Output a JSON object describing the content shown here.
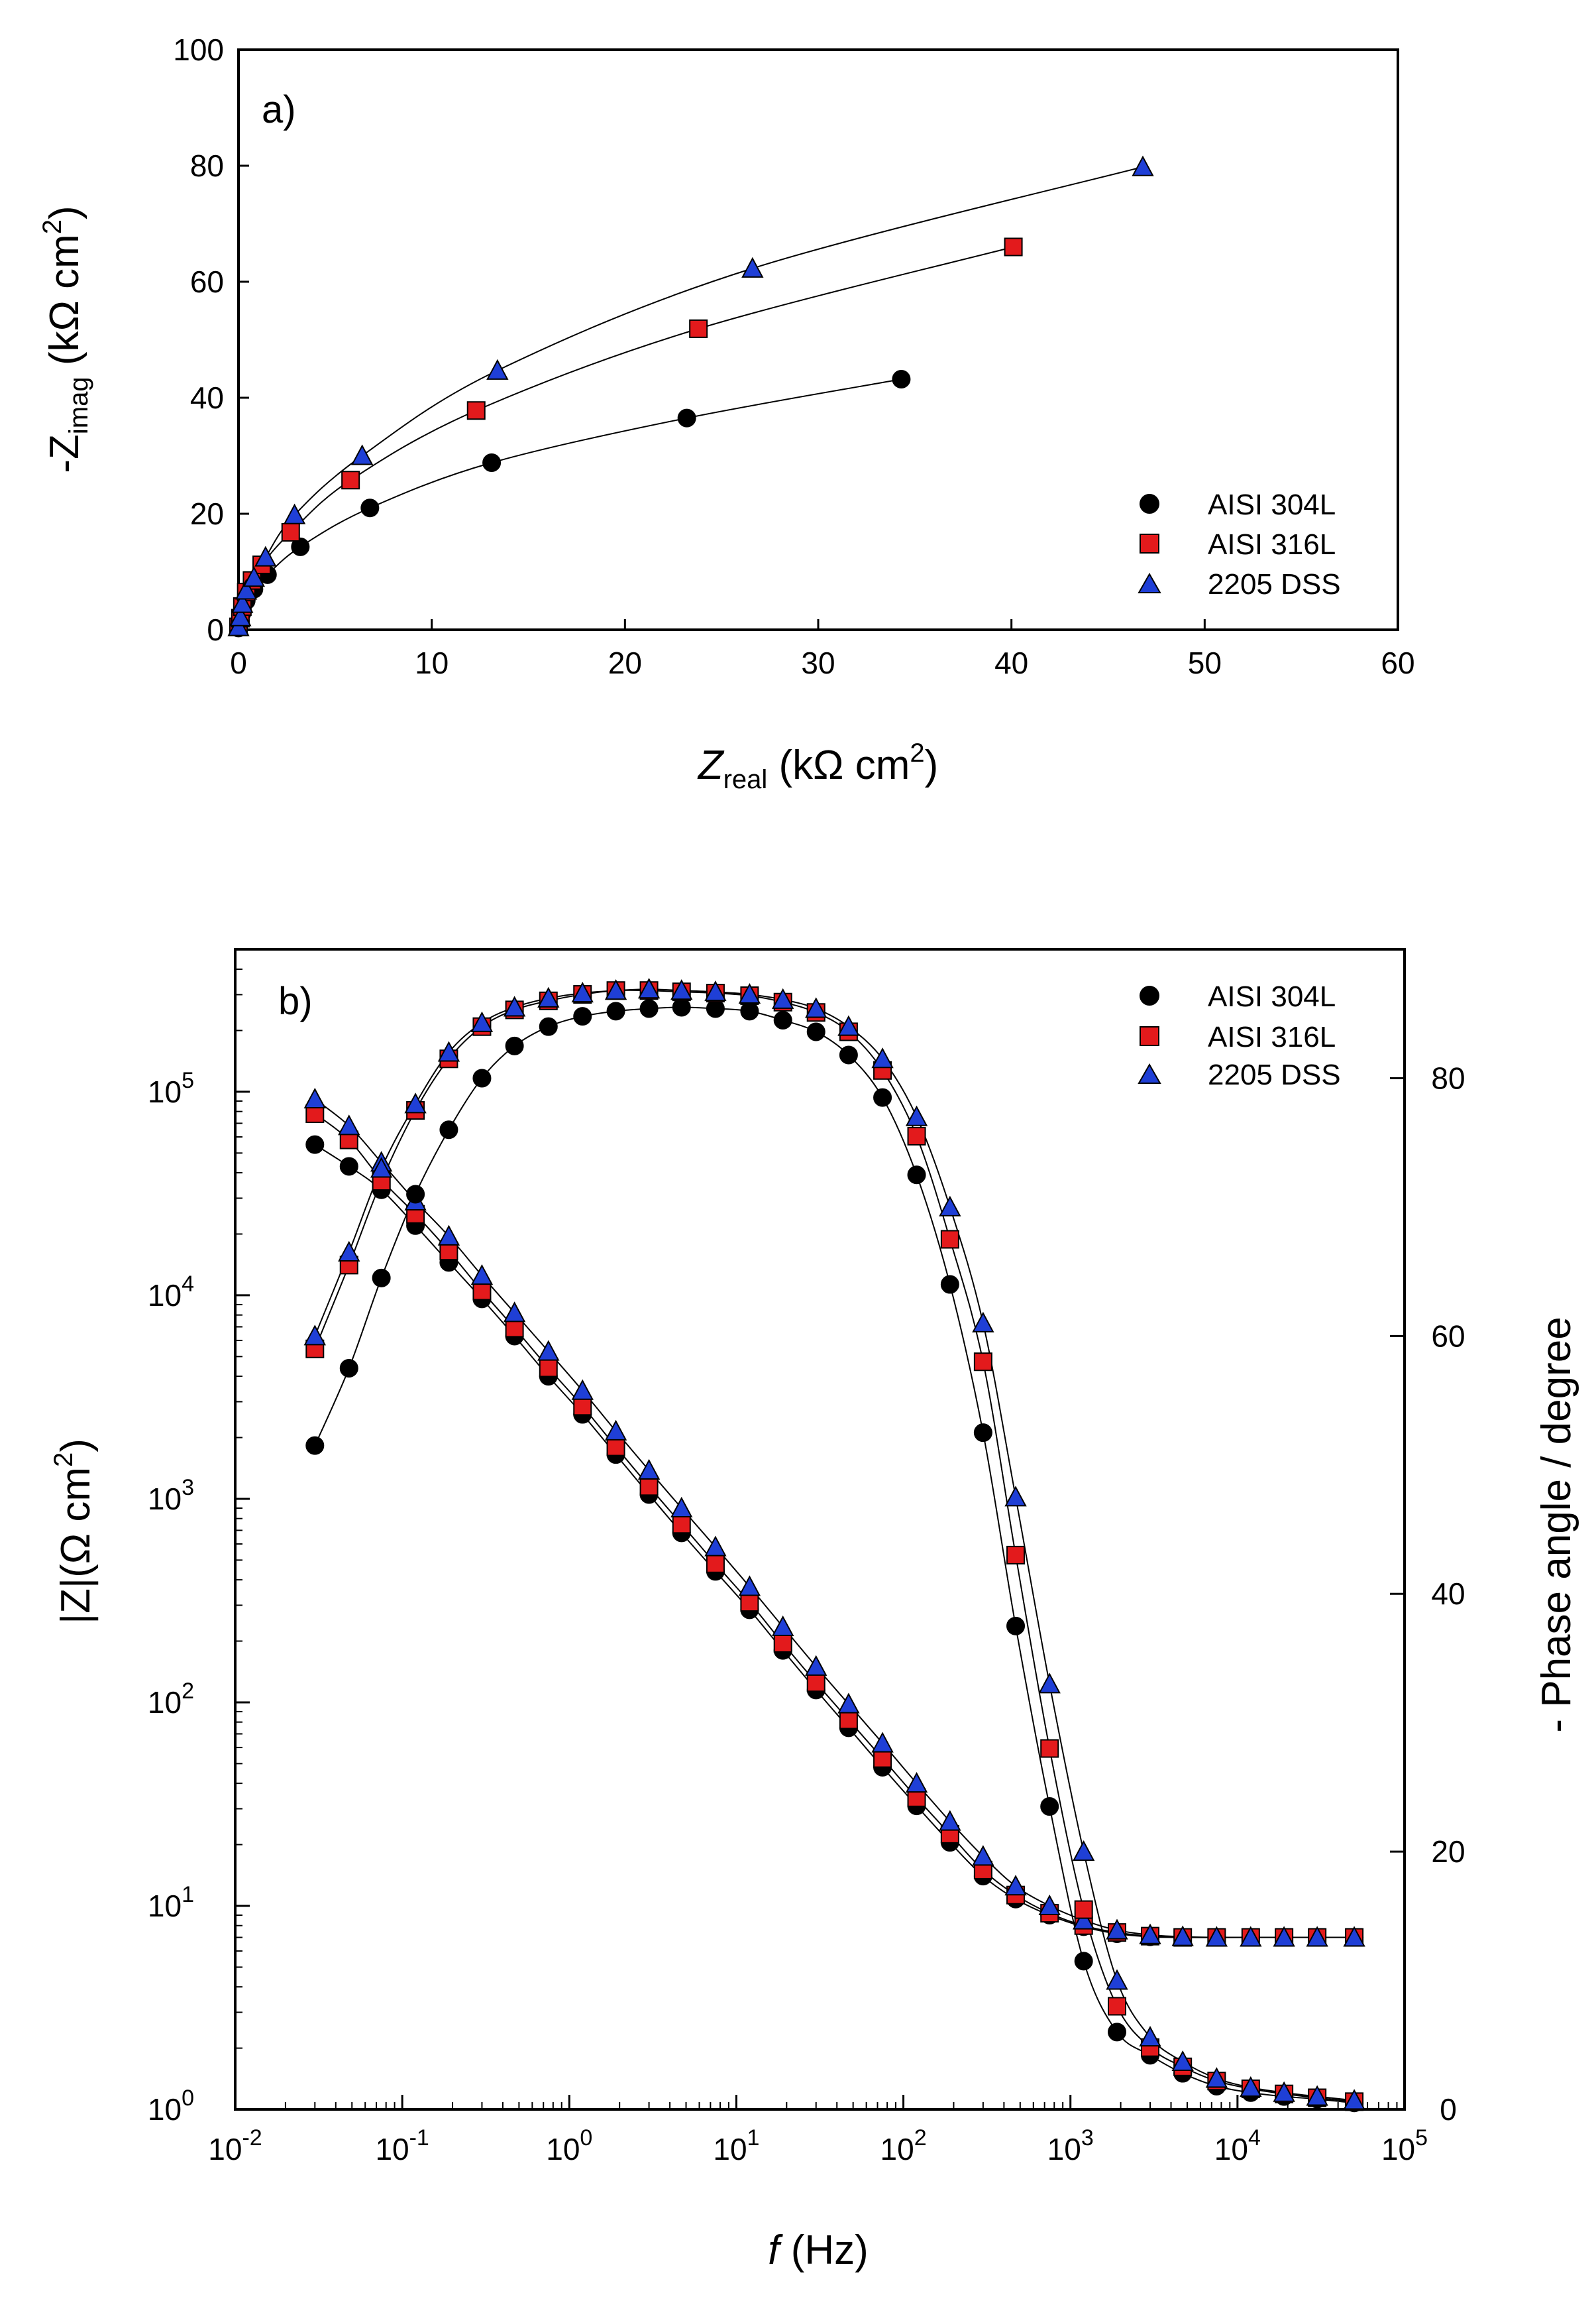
{
  "chart_data": [
    {
      "type": "scatter",
      "panel": "a)",
      "xlabel_main": "Z",
      "xlabel_sub": "real",
      "xlabel_unit": " (kΩ cm",
      "xlabel_sup": "2",
      "xlabel_close": ")",
      "ylabel_main": "-Z",
      "ylabel_sub": "imag",
      "ylabel_unit": " (kΩ cm",
      "ylabel_sup": "2",
      "ylabel_close": ")",
      "xlim": [
        0,
        60
      ],
      "ylim": [
        0,
        100
      ],
      "xticks": [
        "0",
        "10",
        "20",
        "30",
        "40",
        "50",
        "60"
      ],
      "yticks": [
        "0",
        "20",
        "40",
        "60",
        "80",
        "100"
      ],
      "legend": [
        "AISI 304L",
        "AISI 316L",
        "2205 DSS"
      ],
      "series": [
        {
          "name": "AISI 304L",
          "marker": "circle",
          "color": "#000000",
          "x": [
            0.0,
            0.1,
            0.2,
            0.4,
            0.8,
            1.5,
            3.2,
            6.8,
            13.1,
            23.2,
            34.3
          ],
          "y": [
            0.3,
            1.5,
            3.0,
            5.0,
            7.0,
            9.5,
            14.3,
            21.0,
            28.8,
            36.5,
            43.2
          ]
        },
        {
          "name": "AISI 316L",
          "marker": "square",
          "color": "#e31a1c",
          "x": [
            0.0,
            0.1,
            0.2,
            0.4,
            0.7,
            1.2,
            2.7,
            5.8,
            12.3,
            23.8,
            40.1
          ],
          "y": [
            0.5,
            2.0,
            4.0,
            6.5,
            8.5,
            11.2,
            16.8,
            25.8,
            37.8,
            51.9,
            66.0
          ]
        },
        {
          "name": "2205 DSS",
          "marker": "triangle",
          "color": "#1f3fd6",
          "x": [
            0.0,
            0.1,
            0.2,
            0.4,
            0.8,
            1.4,
            2.9,
            6.4,
            13.4,
            26.6,
            46.8
          ],
          "y": [
            0.5,
            2.2,
            4.5,
            6.8,
            9.0,
            12.5,
            19.8,
            30.0,
            44.7,
            62.3,
            79.8
          ]
        }
      ]
    },
    {
      "type": "scatter",
      "panel": "b)",
      "xscale": "log",
      "yscale": "log",
      "xlabel_main": "f",
      "xlabel_unit": " (Hz)",
      "ylabel_left": "|Z|(Ω cm",
      "ylabel_left_sup": "2",
      "ylabel_left_close": ")",
      "ylabel_right": "- Phase angle / degree",
      "xlim_log10": [
        -2,
        5
      ],
      "ylim_log10": [
        0,
        5.7
      ],
      "y2lim": [
        0,
        90
      ],
      "xticks": [
        {
          "base": "10",
          "exp": "-2"
        },
        {
          "base": "10",
          "exp": "-1"
        },
        {
          "base": "10",
          "exp": "0"
        },
        {
          "base": "10",
          "exp": "1"
        },
        {
          "base": "10",
          "exp": "2"
        },
        {
          "base": "10",
          "exp": "3"
        },
        {
          "base": "10",
          "exp": "4"
        },
        {
          "base": "10",
          "exp": "5"
        }
      ],
      "yticks": [
        {
          "base": "10",
          "exp": "0"
        },
        {
          "base": "10",
          "exp": "1"
        },
        {
          "base": "10",
          "exp": "2"
        },
        {
          "base": "10",
          "exp": "3"
        },
        {
          "base": "10",
          "exp": "4"
        },
        {
          "base": "10",
          "exp": "5"
        }
      ],
      "y2ticks": [
        "0",
        "20",
        "40",
        "60",
        "80"
      ],
      "legend": [
        "AISI 304L",
        "AISI 316L",
        "2205 DSS"
      ],
      "freq": [
        0.03,
        0.048,
        0.075,
        0.12,
        0.19,
        0.3,
        0.47,
        0.75,
        1.2,
        1.9,
        3,
        4.7,
        7.5,
        12,
        19,
        30,
        47,
        75,
        120,
        190,
        300,
        470,
        750,
        1200,
        1900,
        3000,
        4700,
        7500,
        12000,
        19000,
        30000,
        50000
      ],
      "impedance": [
        {
          "name": "AISI 304L",
          "marker": "circle",
          "color": "#000000",
          "values": [
            55000,
            43000,
            33000,
            22000,
            14500,
            9600,
            6300,
            4000,
            2600,
            1650,
            1050,
            680,
            440,
            285,
            180,
            115,
            75,
            48,
            31,
            20.5,
            14,
            10.8,
            9.0,
            7.9,
            7.3,
            7.05,
            7.0,
            7.0,
            7.0,
            7.0,
            7.0,
            7.0
          ]
        },
        {
          "name": "AISI 316L",
          "marker": "square",
          "color": "#e31a1c",
          "values": [
            78000,
            58000,
            37000,
            25000,
            16500,
            10500,
            6900,
            4400,
            2850,
            1800,
            1150,
            750,
            480,
            310,
            195,
            125,
            82,
            53,
            34,
            22.5,
            15,
            11.3,
            9.2,
            8.0,
            7.4,
            7.1,
            7.0,
            7.0,
            7.0,
            7.0,
            7.0,
            7.0
          ]
        },
        {
          "name": "2205 DSS",
          "marker": "triangle",
          "color": "#1f3fd6",
          "values": [
            92000,
            68000,
            45000,
            29000,
            19500,
            12500,
            8200,
            5300,
            3400,
            2150,
            1380,
            900,
            580,
            370,
            235,
            150,
            98,
            63,
            40,
            26,
            17.5,
            12.5,
            10.0,
            8.5,
            7.6,
            7.2,
            7.05,
            7.0,
            7.0,
            7.0,
            7.0,
            7.0
          ]
        }
      ],
      "phase": [
        {
          "name": "AISI 304L",
          "marker": "circle",
          "color": "#000000",
          "values": [
            51.5,
            57.5,
            64.5,
            71.0,
            76.0,
            80.0,
            82.5,
            84.0,
            84.8,
            85.2,
            85.4,
            85.5,
            85.4,
            85.2,
            84.5,
            83.6,
            81.8,
            78.5,
            72.5,
            64.0,
            52.5,
            37.5,
            23.5,
            11.5,
            6.0,
            4.2,
            2.8,
            1.8,
            1.3,
            1.0,
            0.8,
            0.5
          ]
        },
        {
          "name": "AISI 316L",
          "marker": "square",
          "color": "#e31a1c",
          "values": [
            59.0,
            65.5,
            72.0,
            77.5,
            81.5,
            84.0,
            85.3,
            86.0,
            86.5,
            86.8,
            86.8,
            86.7,
            86.6,
            86.4,
            85.9,
            85.1,
            83.6,
            80.6,
            75.5,
            67.5,
            58.0,
            43.0,
            28.0,
            15.5,
            8.0,
            4.8,
            3.3,
            2.2,
            1.6,
            1.2,
            0.9,
            0.6
          ]
        },
        {
          "name": "2205 DSS",
          "marker": "triangle",
          "color": "#1f3fd6",
          "values": [
            60.0,
            66.5,
            73.0,
            78.0,
            82.0,
            84.3,
            85.5,
            86.2,
            86.6,
            86.8,
            86.9,
            86.8,
            86.7,
            86.5,
            86.1,
            85.4,
            84.0,
            81.5,
            77.0,
            70.0,
            61.0,
            47.5,
            33.0,
            20.0,
            10.0,
            5.6,
            3.7,
            2.4,
            1.7,
            1.3,
            1.0,
            0.7
          ]
        }
      ]
    }
  ]
}
